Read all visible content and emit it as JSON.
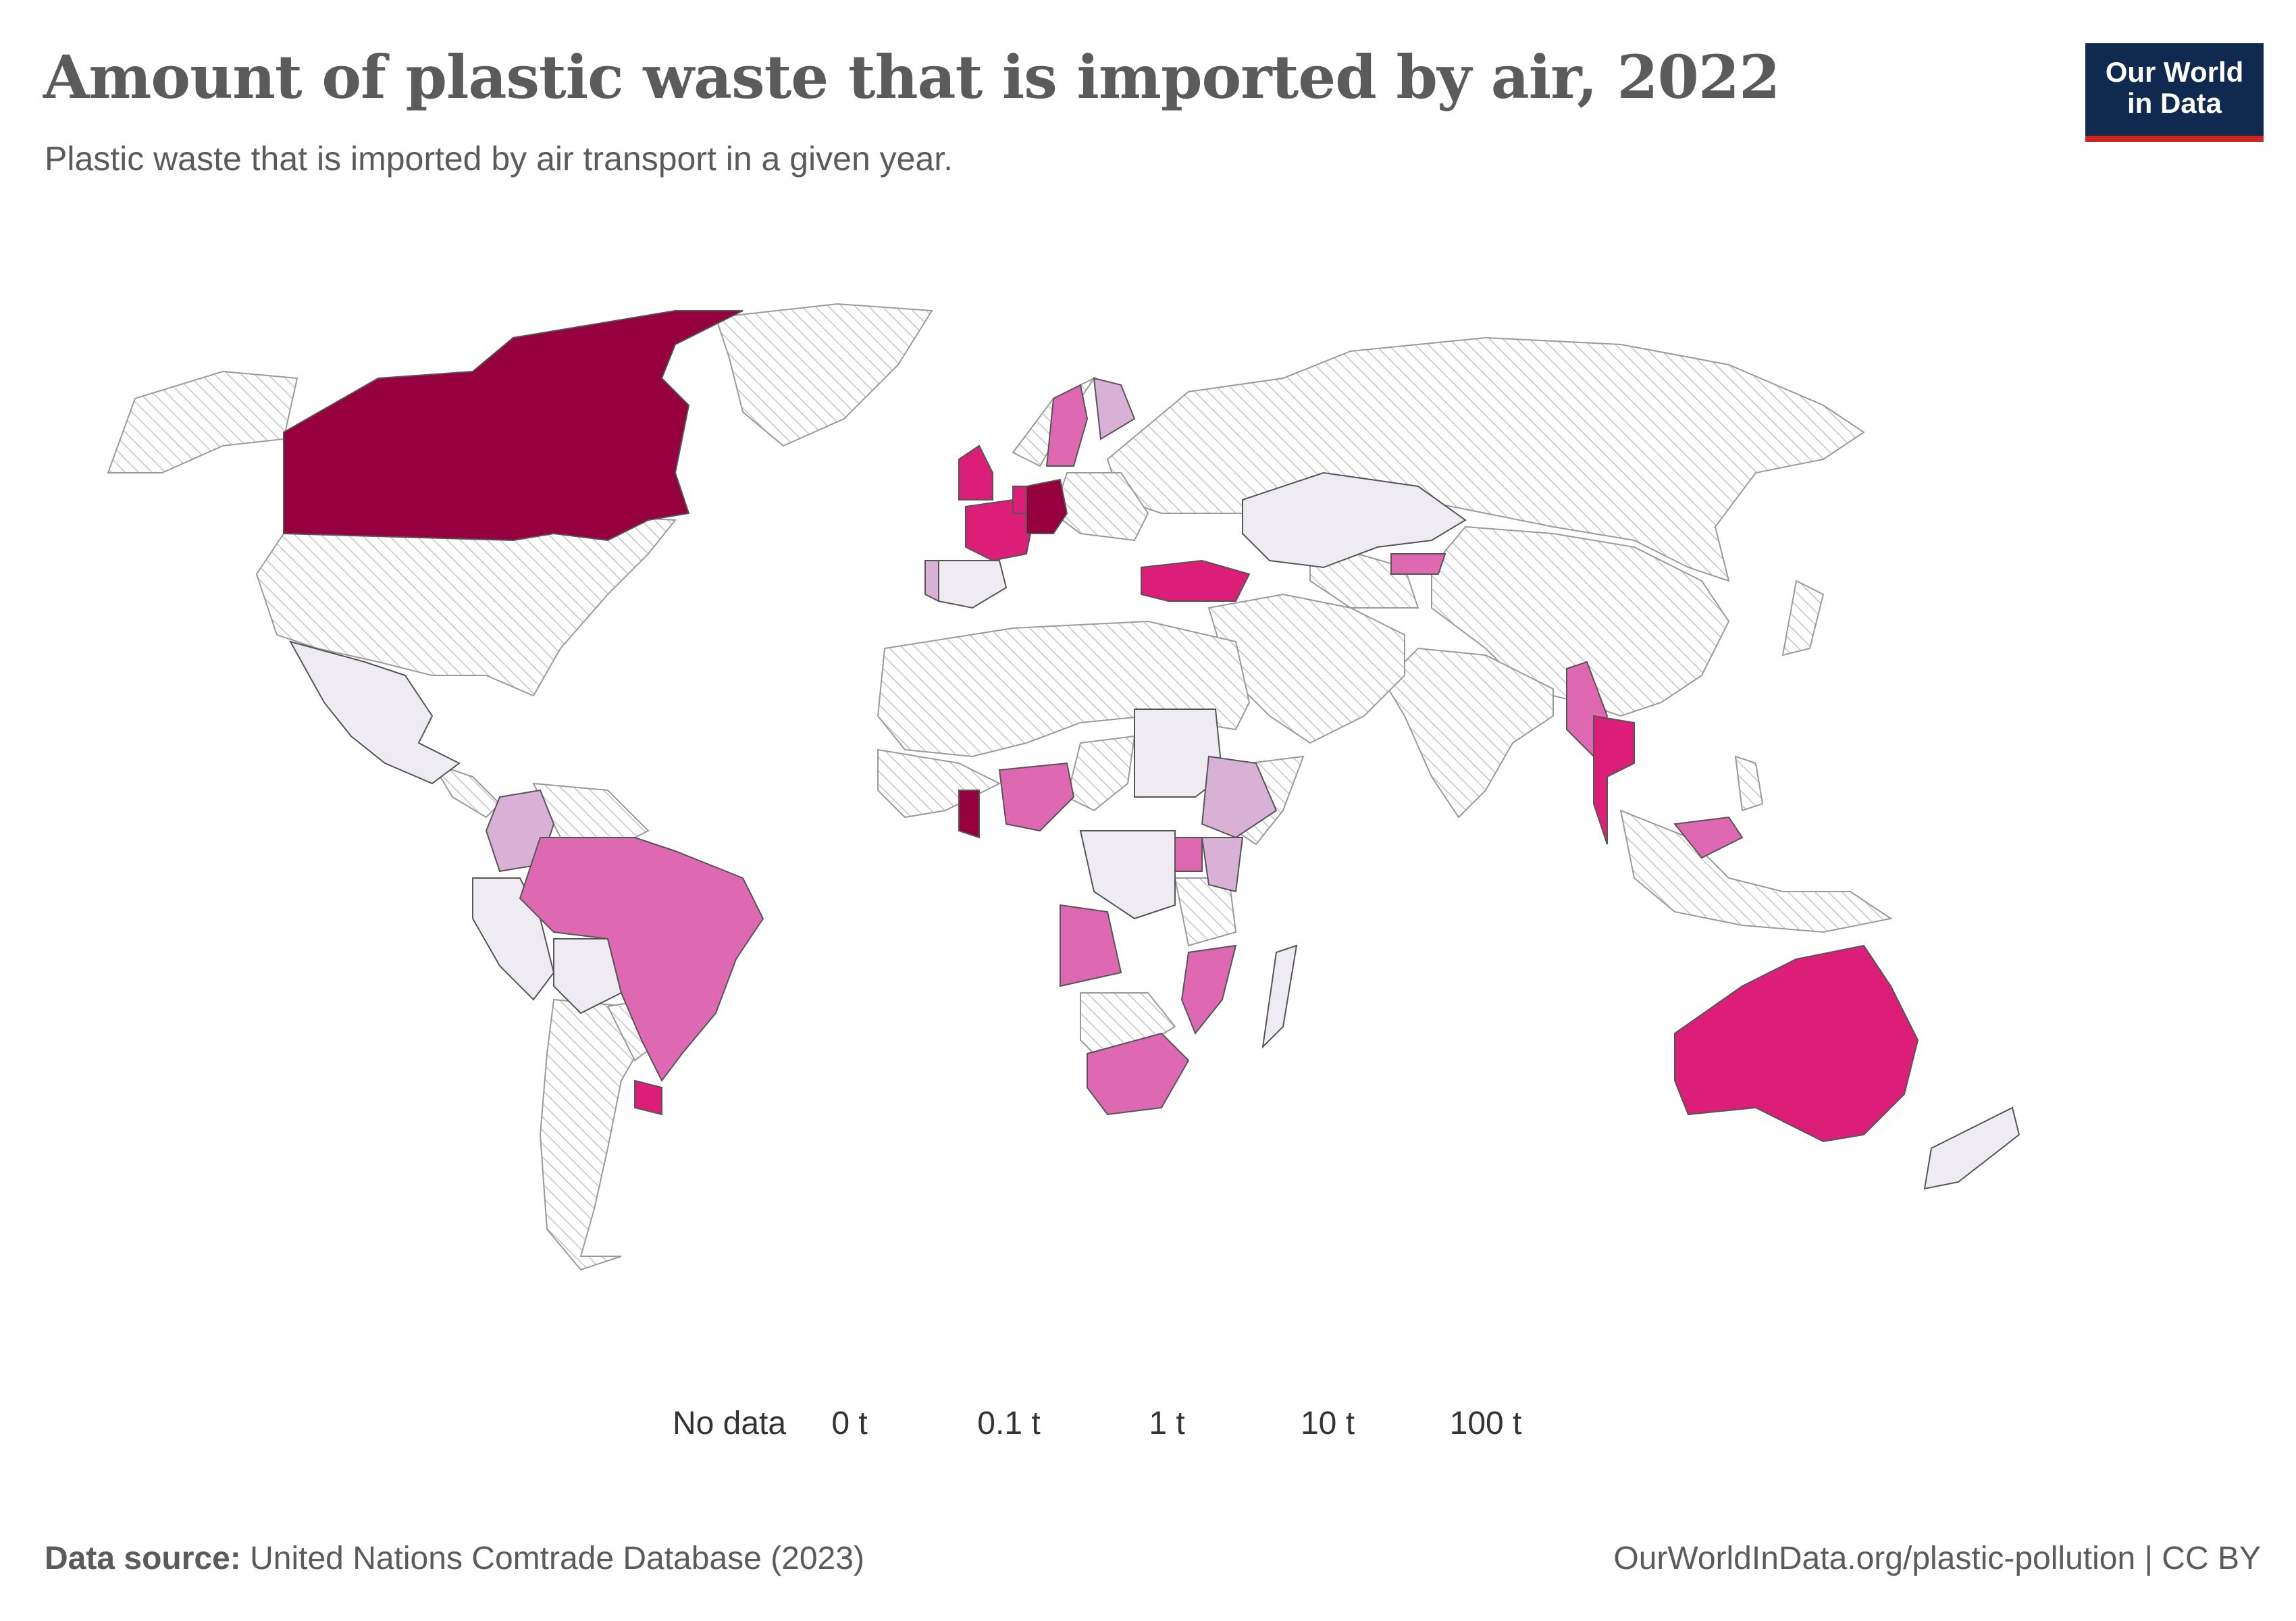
{
  "header": {
    "title": "Amount of plastic waste that is imported by air, 2022",
    "subtitle": "Plastic waste that is imported by air transport in a given year.",
    "logo_line1": "Our World",
    "logo_line2": "in Data"
  },
  "legend": {
    "no_data_label": "No data",
    "bins": [
      "0 t",
      "0.1 t",
      "1 t",
      "10 t",
      "100 t"
    ],
    "colors": [
      "#efebf3",
      "#d9b1d6",
      "#df68b2",
      "#dc1e79",
      "#97003f"
    ],
    "no_data_pattern": "hatched-gray"
  },
  "map_data": {
    "metric": "Plastic waste imported by air (tonnes)",
    "year": 2022,
    "bin_edges": [
      0,
      0.1,
      1,
      10,
      100
    ],
    "countries": [
      {
        "name": "Canada",
        "bin": 4
      },
      {
        "name": "Germany",
        "bin": 4
      },
      {
        "name": "Ghana",
        "bin": 4
      },
      {
        "name": "United Kingdom",
        "bin": 3
      },
      {
        "name": "France",
        "bin": 3
      },
      {
        "name": "Netherlands",
        "bin": 3
      },
      {
        "name": "Turkey",
        "bin": 3
      },
      {
        "name": "Australia",
        "bin": 3
      },
      {
        "name": "Uruguay",
        "bin": 3
      },
      {
        "name": "Thailand",
        "bin": 3
      },
      {
        "name": "Malaysia",
        "bin": 2
      },
      {
        "name": "Sweden",
        "bin": 2
      },
      {
        "name": "Brazil",
        "bin": 2
      },
      {
        "name": "Nigeria",
        "bin": 2
      },
      {
        "name": "Angola",
        "bin": 2
      },
      {
        "name": "South Africa",
        "bin": 2
      },
      {
        "name": "Mozambique",
        "bin": 2
      },
      {
        "name": "Myanmar",
        "bin": 2
      },
      {
        "name": "Kyrgyzstan",
        "bin": 2
      },
      {
        "name": "Uganda",
        "bin": 2
      },
      {
        "name": "Colombia",
        "bin": 1
      },
      {
        "name": "Ethiopia",
        "bin": 1
      },
      {
        "name": "Kenya",
        "bin": 1
      },
      {
        "name": "Portugal",
        "bin": 1
      },
      {
        "name": "Finland",
        "bin": 1
      },
      {
        "name": "Mexico",
        "bin": 0
      },
      {
        "name": "Kazakhstan",
        "bin": 0
      },
      {
        "name": "Sudan",
        "bin": 0
      },
      {
        "name": "Peru",
        "bin": 0
      },
      {
        "name": "Bolivia",
        "bin": 0
      },
      {
        "name": "Spain",
        "bin": 0
      },
      {
        "name": "Madagascar",
        "bin": 0
      },
      {
        "name": "New Zealand",
        "bin": 0
      },
      {
        "name": "DR Congo",
        "bin": 0
      },
      {
        "name": "Tanzania",
        "bin": 0
      }
    ]
  },
  "footer": {
    "source_label": "Data source:",
    "source_text": " United Nations Comtrade Database (2023)",
    "url": "OurWorldInData.org/plastic-pollution | CC BY"
  }
}
